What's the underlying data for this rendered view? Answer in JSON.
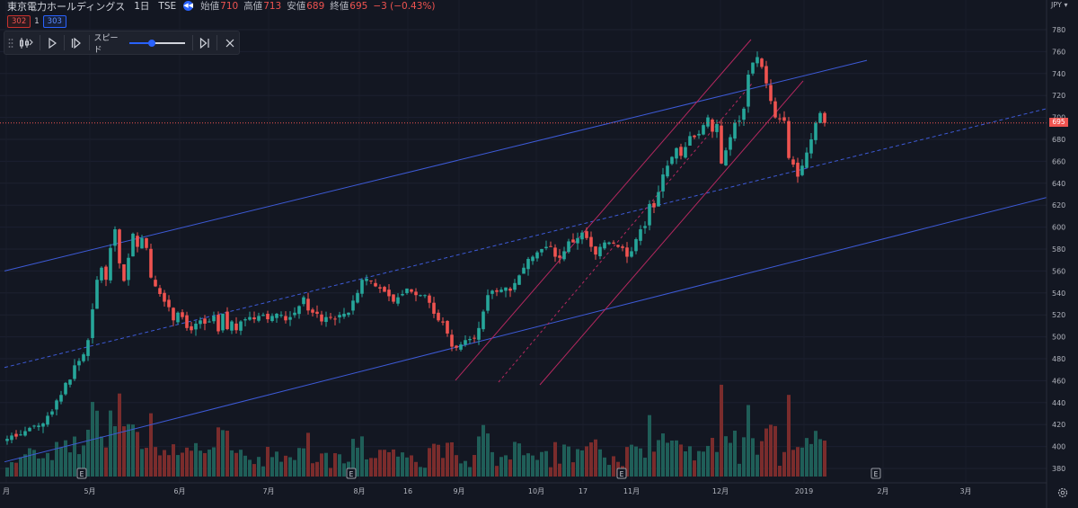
{
  "header": {
    "symbol": "東京電力ホールディングス",
    "timeframe": "1日",
    "exchange": "TSE",
    "replay_glyph": "◀◀",
    "open_label": "始値",
    "open_value": "710",
    "high_label": "高値",
    "high_value": "713",
    "low_label": "安値",
    "low_value": "689",
    "close_label": "終値",
    "close_value": "695",
    "change": "−3 (−0.43%)"
  },
  "replay_boxes": {
    "left": "302",
    "middle": "1",
    "right": "303"
  },
  "replay_toolbar": {
    "speed_label": "スピード",
    "speed_fraction": 0.4
  },
  "currency": "JPY",
  "last_price_tag": "695",
  "colors": {
    "up": "#26a69a",
    "down": "#ef5350",
    "trend": "#3d5ad6",
    "channel": "#b4285f",
    "price_line": "#ef5350"
  },
  "chart_data": {
    "type": "candlestick",
    "y_axis": {
      "ticks": [
        380,
        400,
        420,
        440,
        460,
        480,
        500,
        520,
        540,
        560,
        580,
        600,
        620,
        640,
        660,
        680,
        700,
        720,
        740,
        760,
        780
      ],
      "range": [
        370,
        790
      ]
    },
    "x_axis": {
      "ticks": [
        "月",
        "5月",
        "6月",
        "7月",
        "8月",
        "16",
        "9月",
        "10月",
        "17",
        "11月",
        "12月",
        "2019",
        "2月",
        "3月"
      ]
    },
    "last_price": 695,
    "earnings_markers": [
      "E",
      "E",
      "E",
      "E"
    ],
    "candles_close": [
      407,
      410,
      409,
      411,
      414,
      417,
      419,
      419,
      421,
      428,
      432,
      442,
      447,
      458,
      461,
      474,
      478,
      484,
      497,
      525,
      552,
      563,
      552,
      581,
      598,
      567,
      551,
      572,
      594,
      582,
      590,
      581,
      554,
      546,
      539,
      532,
      527,
      515,
      522,
      518,
      508,
      506,
      512,
      515,
      512,
      514,
      519,
      505,
      521,
      507,
      514,
      506,
      514,
      516,
      518,
      516,
      519,
      520,
      516,
      519,
      521,
      520,
      515,
      518,
      522,
      528,
      536,
      524,
      522,
      521,
      514,
      518,
      518,
      516,
      520,
      521,
      522,
      533,
      540,
      552,
      553,
      551,
      546,
      544,
      541,
      537,
      532,
      536,
      539,
      544,
      541,
      538,
      538,
      538,
      531,
      521,
      515,
      513,
      503,
      491,
      490,
      493,
      497,
      498,
      499,
      508,
      523,
      538,
      542,
      541,
      543,
      545,
      542,
      549,
      556,
      563,
      571,
      573,
      577,
      580,
      582,
      582,
      573,
      572,
      578,
      587,
      586,
      590,
      595,
      590,
      582,
      575,
      582,
      586,
      586,
      585,
      582,
      581,
      573,
      578,
      589,
      598,
      601,
      621,
      618,
      632,
      648,
      656,
      664,
      672,
      665,
      673,
      683,
      682,
      685,
      693,
      700,
      687,
      694,
      658,
      670,
      682,
      695,
      697,
      708,
      739,
      750,
      755,
      746,
      731,
      715,
      700,
      699,
      697,
      663,
      657,
      646,
      656,
      668,
      680,
      695,
      704,
      695
    ],
    "trend_channel": {
      "upper_ends": [
        560,
        752
      ],
      "middle_ends": [
        472,
        708
      ],
      "lower_ends": [
        386,
        627
      ]
    }
  }
}
